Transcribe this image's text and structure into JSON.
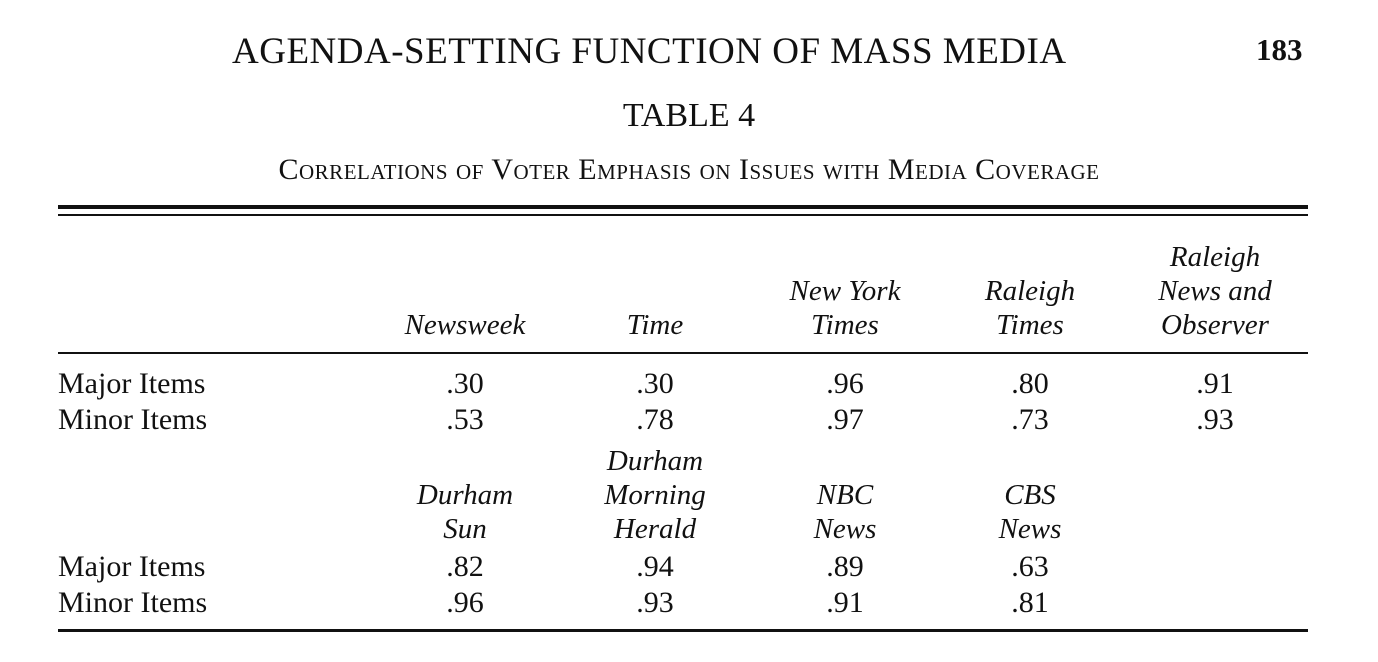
{
  "running_head": {
    "title": "AGENDA-SETTING FUNCTION OF MASS MEDIA",
    "page_number": "183"
  },
  "table": {
    "number": "TABLE 4",
    "caption": "Correlations of Voter Emphasis on Issues with Media Coverage",
    "panel1": {
      "headers": [
        [
          "Newsweek"
        ],
        [
          "Time"
        ],
        [
          "New York",
          "Times"
        ],
        [
          "Raleigh",
          "Times"
        ],
        [
          "Raleigh",
          "News and",
          "Observer"
        ]
      ],
      "rows": [
        {
          "label": "Major Items",
          "values": [
            ".30",
            ".30",
            ".96",
            ".80",
            ".91"
          ]
        },
        {
          "label": "Minor Items",
          "values": [
            ".53",
            ".78",
            ".97",
            ".73",
            ".93"
          ]
        }
      ]
    },
    "panel2": {
      "headers": [
        [
          "Durham",
          "Sun"
        ],
        [
          "Durham",
          "Morning",
          "Herald"
        ],
        [
          "NBC",
          "News"
        ],
        [
          "CBS",
          "News"
        ]
      ],
      "rows": [
        {
          "label": "Major Items",
          "values": [
            ".82",
            ".94",
            ".89",
            ".63"
          ]
        },
        {
          "label": "Minor Items",
          "values": [
            ".96",
            ".93",
            ".91",
            ".81"
          ]
        }
      ]
    }
  }
}
